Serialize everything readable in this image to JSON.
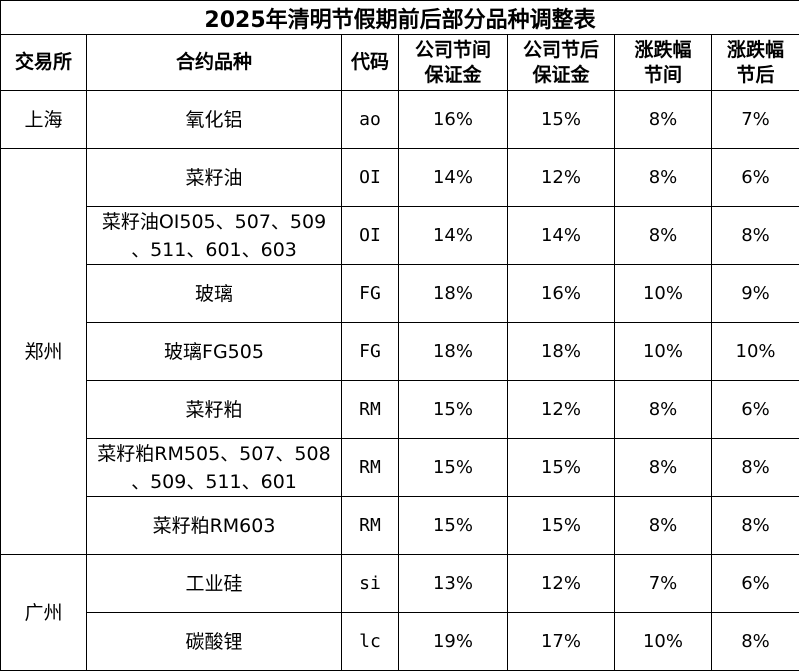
{
  "title": "2025年清明节假期前后部分品种调整表",
  "headers": {
    "exchange": "交易所",
    "contract": "合约品种",
    "code": "代码",
    "margin_holiday": [
      "公司节间",
      "保证金"
    ],
    "margin_after": [
      "公司节后",
      "保证金"
    ],
    "limit_holiday": [
      "涨跌幅",
      "节间"
    ],
    "limit_after": [
      "涨跌幅",
      "节后"
    ]
  },
  "groups": [
    {
      "exchange": "上海",
      "rows": [
        {
          "name": [
            "氧化铝"
          ],
          "code": "ao",
          "m1": "16%",
          "m2": "15%",
          "l1": "8%",
          "l2": "7%"
        }
      ]
    },
    {
      "exchange": "郑州",
      "rows": [
        {
          "name": [
            "菜籽油"
          ],
          "code": "OI",
          "m1": "14%",
          "m2": "12%",
          "l1": "8%",
          "l2": "6%"
        },
        {
          "name": [
            "菜籽油OI505、507、509",
            "、511、601、603"
          ],
          "code": "OI",
          "m1": "14%",
          "m2": "14%",
          "l1": "8%",
          "l2": "8%"
        },
        {
          "name": [
            "玻璃"
          ],
          "code": "FG",
          "m1": "18%",
          "m2": "16%",
          "l1": "10%",
          "l2": "9%"
        },
        {
          "name": [
            "玻璃FG505"
          ],
          "code": "FG",
          "m1": "18%",
          "m2": "18%",
          "l1": "10%",
          "l2": "10%"
        },
        {
          "name": [
            "菜籽粕"
          ],
          "code": "RM",
          "m1": "15%",
          "m2": "12%",
          "l1": "8%",
          "l2": "6%"
        },
        {
          "name": [
            "菜籽粕RM505、507、508",
            "、509、511、601"
          ],
          "code": "RM",
          "m1": "15%",
          "m2": "15%",
          "l1": "8%",
          "l2": "8%"
        },
        {
          "name": [
            "菜籽粕RM603"
          ],
          "code": "RM",
          "m1": "15%",
          "m2": "15%",
          "l1": "8%",
          "l2": "8%"
        }
      ]
    },
    {
      "exchange": "广州",
      "rows": [
        {
          "name": [
            "工业硅"
          ],
          "code": "si",
          "m1": "13%",
          "m2": "12%",
          "l1": "7%",
          "l2": "6%"
        },
        {
          "name": [
            "碳酸锂"
          ],
          "code": "lc",
          "m1": "19%",
          "m2": "17%",
          "l1": "10%",
          "l2": "8%"
        }
      ]
    }
  ]
}
